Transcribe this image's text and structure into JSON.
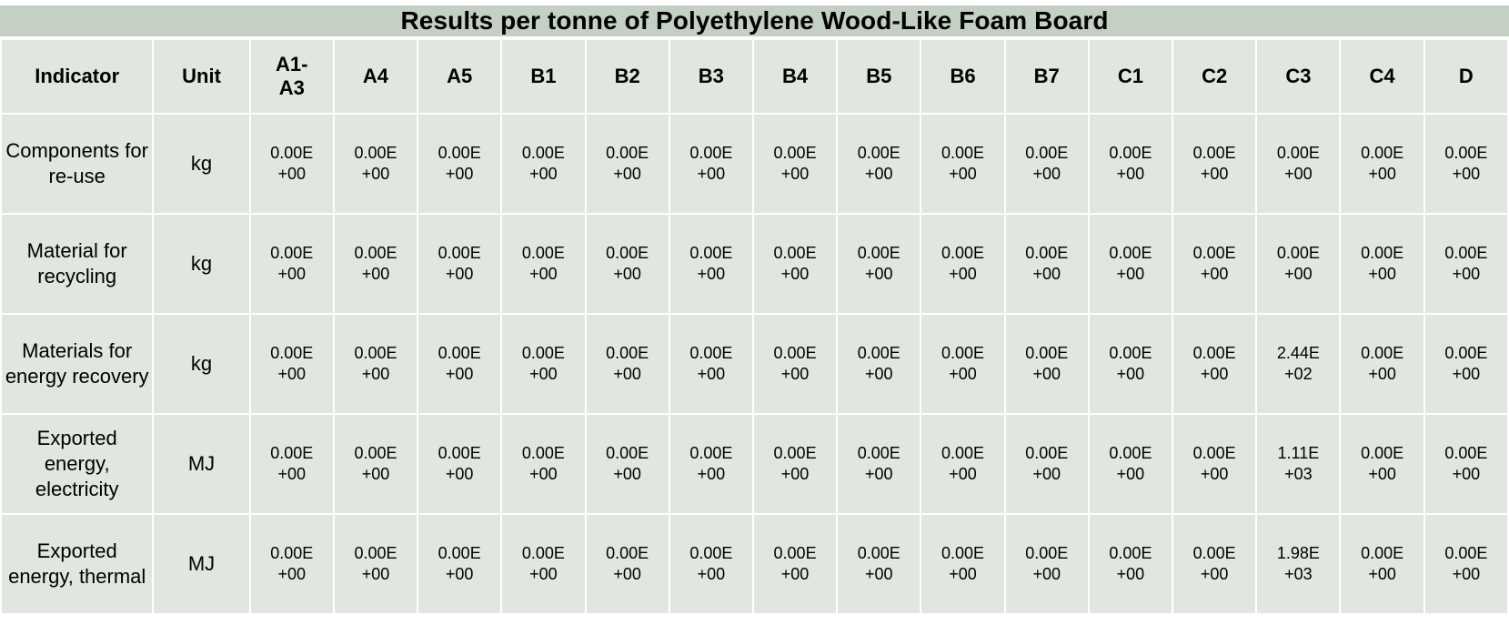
{
  "title": "Results per tonne of Polyethylene Wood-Like Foam Board",
  "headers": [
    "Indicator",
    "Unit",
    "A1-\nA3",
    "A4",
    "A5",
    "B1",
    "B2",
    "B3",
    "B4",
    "B5",
    "B6",
    "B7",
    "C1",
    "C2",
    "C3",
    "C4",
    "D"
  ],
  "rows": [
    {
      "indicator": "Components for re-use",
      "unit": "kg",
      "values": [
        "0.00E+00",
        "0.00E+00",
        "0.00E+00",
        "0.00E+00",
        "0.00E+00",
        "0.00E+00",
        "0.00E+00",
        "0.00E+00",
        "0.00E+00",
        "0.00E+00",
        "0.00E+00",
        "0.00E+00",
        "0.00E+00",
        "0.00E+00",
        "0.00E+00"
      ]
    },
    {
      "indicator": "Material for recycling",
      "unit": "kg",
      "values": [
        "0.00E+00",
        "0.00E+00",
        "0.00E+00",
        "0.00E+00",
        "0.00E+00",
        "0.00E+00",
        "0.00E+00",
        "0.00E+00",
        "0.00E+00",
        "0.00E+00",
        "0.00E+00",
        "0.00E+00",
        "0.00E+00",
        "0.00E+00",
        "0.00E+00"
      ]
    },
    {
      "indicator": "Materials for energy recovery",
      "unit": "kg",
      "values": [
        "0.00E+00",
        "0.00E+00",
        "0.00E+00",
        "0.00E+00",
        "0.00E+00",
        "0.00E+00",
        "0.00E+00",
        "0.00E+00",
        "0.00E+00",
        "0.00E+00",
        "0.00E+00",
        "0.00E+00",
        "2.44E+02",
        "0.00E+00",
        "0.00E+00"
      ]
    },
    {
      "indicator": "Exported energy, electricity",
      "unit": "MJ",
      "values": [
        "0.00E+00",
        "0.00E+00",
        "0.00E+00",
        "0.00E+00",
        "0.00E+00",
        "0.00E+00",
        "0.00E+00",
        "0.00E+00",
        "0.00E+00",
        "0.00E+00",
        "0.00E+00",
        "0.00E+00",
        "1.11E+03",
        "0.00E+00",
        "0.00E+00"
      ]
    },
    {
      "indicator": "Exported energy, thermal",
      "unit": "MJ",
      "values": [
        "0.00E+00",
        "0.00E+00",
        "0.00E+00",
        "0.00E+00",
        "0.00E+00",
        "0.00E+00",
        "0.00E+00",
        "0.00E+00",
        "0.00E+00",
        "0.00E+00",
        "0.00E+00",
        "0.00E+00",
        "1.98E+03",
        "0.00E+00",
        "0.00E+00"
      ]
    }
  ]
}
